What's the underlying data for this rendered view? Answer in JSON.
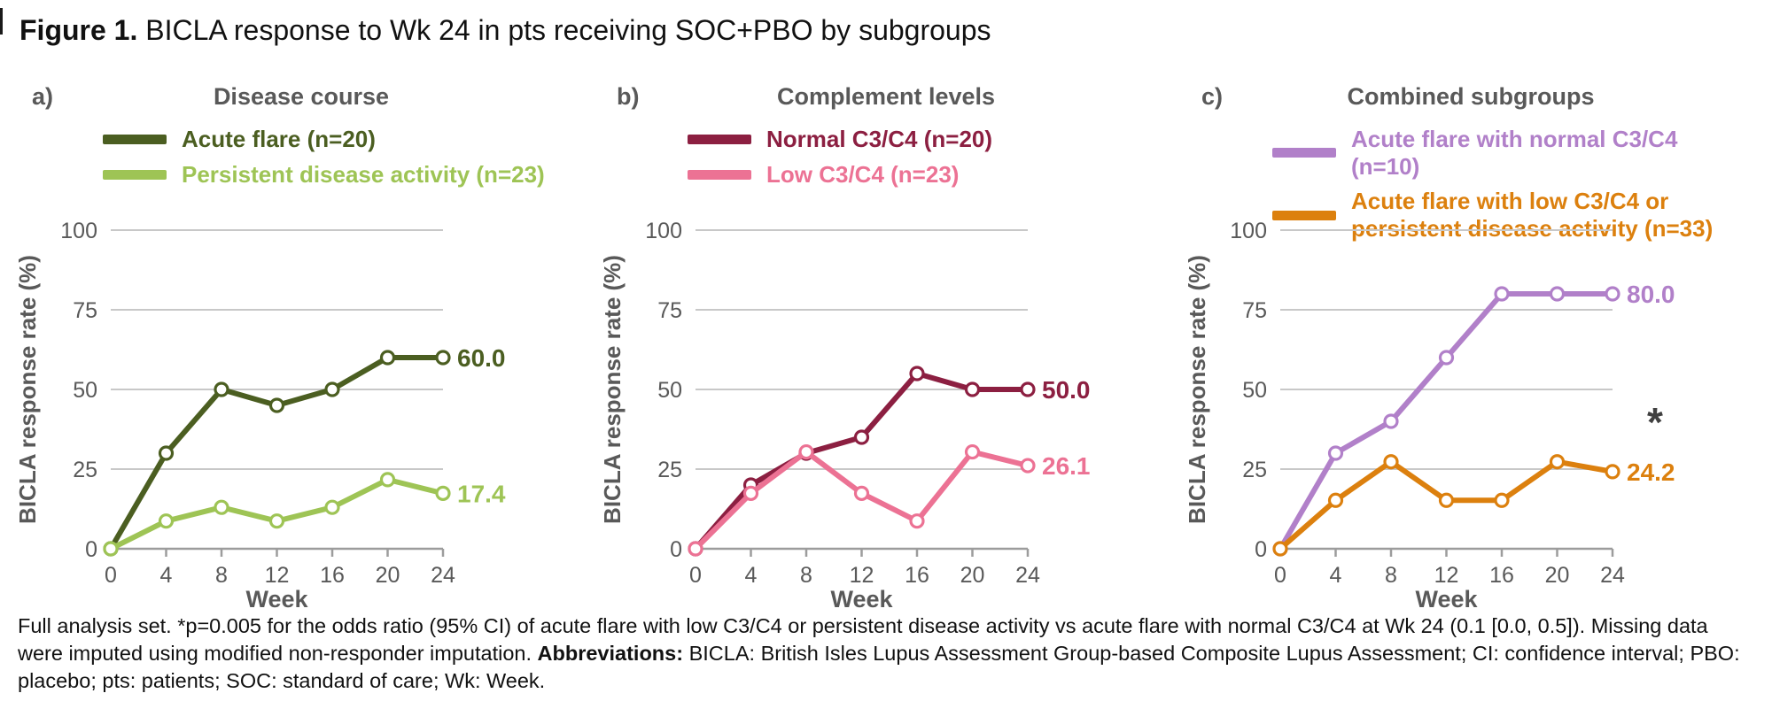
{
  "figure": {
    "title_bold": "Figure 1.",
    "title_rest": " BICLA response to Wk 24 in pts receiving SOC+PBO by subgroups"
  },
  "colors": {
    "dark_green": "#4b5e21",
    "light_green": "#9ec455",
    "maroon": "#8c1f41",
    "pink": "#ec7294",
    "purple": "#b180c9",
    "orange": "#dc800e",
    "gray_text": "#595959",
    "gridline": "#c8c8c8",
    "axis": "#9c9c9c",
    "asterisk": "#404040"
  },
  "panels": [
    {
      "label": "a)",
      "title": "Disease course",
      "legend": [
        {
          "label": "Acute flare (n=20)",
          "color": "#4b5e21"
        },
        {
          "label": "Persistent disease activity (n=23)",
          "color": "#9ec455"
        }
      ]
    },
    {
      "label": "b)",
      "title": "Complement levels",
      "legend": [
        {
          "label": "Normal C3/C4 (n=20)",
          "color": "#8c1f41"
        },
        {
          "label": "Low C3/C4 (n=23)",
          "color": "#ec7294"
        }
      ]
    },
    {
      "label": "c)",
      "title": "Combined subgroups",
      "legend": [
        {
          "label": "Acute flare with normal C3/C4 (n=10)",
          "color": "#b180c9"
        },
        {
          "label": "Acute flare with low C3/C4 or persistent disease activity (n=33)",
          "color": "#dc800e"
        }
      ]
    }
  ],
  "chart_data": [
    {
      "type": "line",
      "title": "Disease course",
      "x": [
        0,
        4,
        8,
        12,
        16,
        20,
        24
      ],
      "xlabel": "Week",
      "ylabel": "BICLA response rate (%)",
      "ylim": [
        0,
        100
      ],
      "yticks": [
        0,
        25,
        50,
        75,
        100
      ],
      "grid": true,
      "legend_position": "top-left",
      "series": [
        {
          "name": "Acute flare (n=20)",
          "color": "#4b5e21",
          "values": [
            0,
            30,
            50,
            45,
            50,
            60,
            60
          ],
          "end_label": "60.0"
        },
        {
          "name": "Persistent disease activity (n=23)",
          "color": "#9ec455",
          "values": [
            0,
            8.7,
            13.0,
            8.7,
            13.0,
            21.7,
            17.4
          ],
          "end_label": "17.4"
        }
      ]
    },
    {
      "type": "line",
      "title": "Complement levels",
      "x": [
        0,
        4,
        8,
        12,
        16,
        20,
        24
      ],
      "xlabel": "Week",
      "ylabel": "BICLA response rate (%)",
      "ylim": [
        0,
        100
      ],
      "yticks": [
        0,
        25,
        50,
        75,
        100
      ],
      "grid": true,
      "legend_position": "top-left",
      "series": [
        {
          "name": "Normal C3/C4 (n=20)",
          "color": "#8c1f41",
          "values": [
            0,
            20,
            30,
            35,
            55,
            50,
            50
          ],
          "end_label": "50.0"
        },
        {
          "name": "Low C3/C4 (n=23)",
          "color": "#ec7294",
          "values": [
            0,
            17.4,
            30.4,
            17.4,
            8.7,
            30.4,
            26.1
          ],
          "end_label": "26.1"
        }
      ]
    },
    {
      "type": "line",
      "title": "Combined subgroups",
      "x": [
        0,
        4,
        8,
        12,
        16,
        20,
        24
      ],
      "xlabel": "Week",
      "ylabel": "BICLA response rate (%)",
      "ylim": [
        0,
        100
      ],
      "yticks": [
        0,
        25,
        50,
        75,
        100
      ],
      "grid": true,
      "legend_position": "top-left",
      "series": [
        {
          "name": "Acute flare with normal C3/C4 (n=10)",
          "color": "#b180c9",
          "values": [
            0,
            30,
            40,
            60,
            80,
            80,
            80
          ],
          "end_label": "80.0"
        },
        {
          "name": "Acute flare with low C3/C4 or persistent disease activity (n=33)",
          "color": "#dc800e",
          "values": [
            0,
            15.2,
            27.3,
            15.2,
            15.2,
            27.3,
            24.2
          ],
          "end_label": "24.2",
          "annotation": "*"
        }
      ]
    }
  ],
  "footer": {
    "text_main": "Full analysis set. *p=0.005 for the odds ratio (95% CI) of acute flare with low C3/C4 or persistent disease activity vs acute flare with normal C3/C4 at Wk 24 (0.1 [0.0, 0.5]). Missing data were imputed using modified non-responder imputation. ",
    "abbr_label": "Abbreviations:",
    "text_abbr": " BICLA: British Isles Lupus Assessment Group-based Composite Lupus Assessment; CI: confidence interval; PBO: placebo; pts: patients; SOC: standard of care; Wk: Week."
  }
}
